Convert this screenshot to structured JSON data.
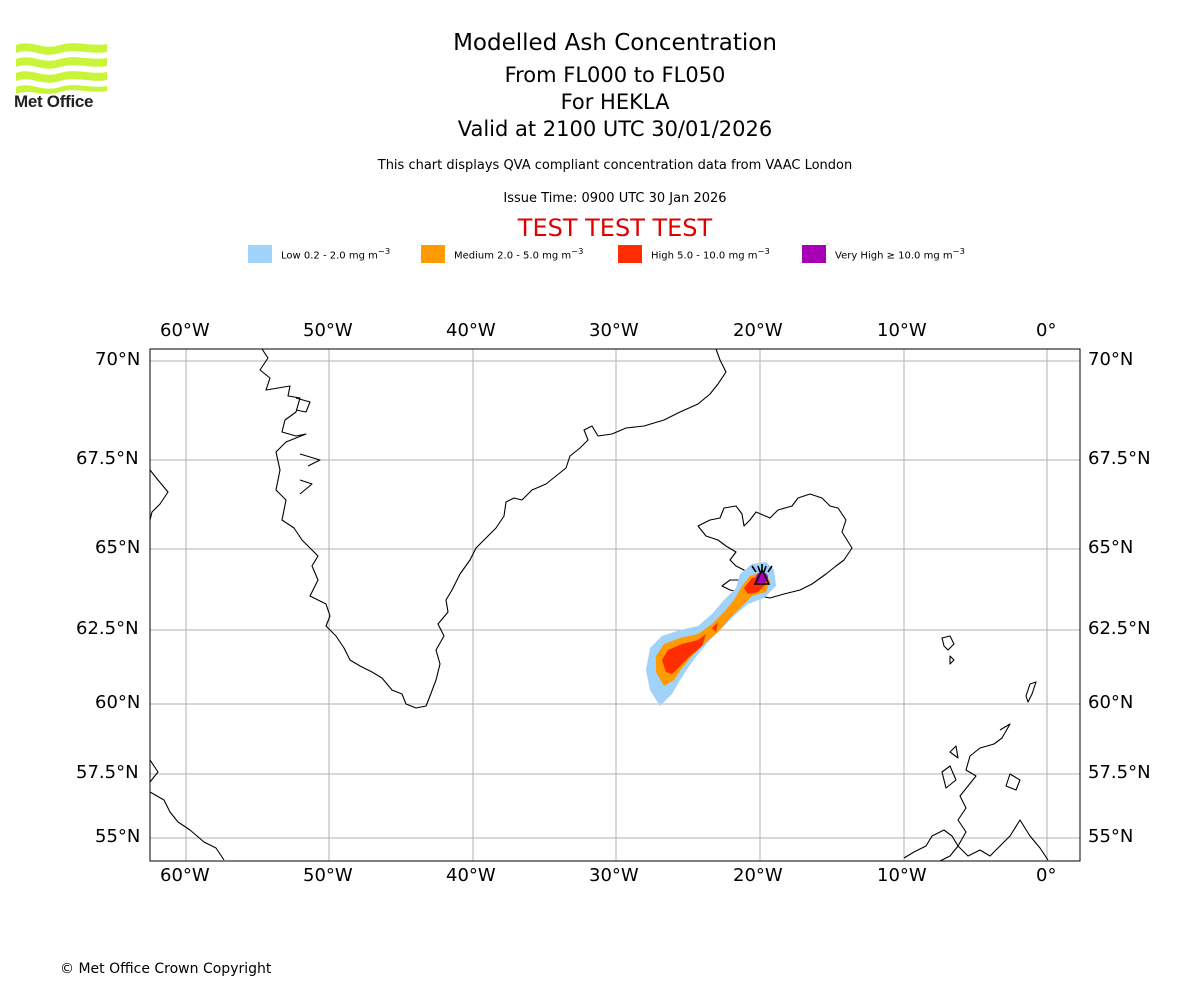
{
  "header": {
    "title": "Modelled Ash Concentration",
    "levels": "From FL000 to FL050",
    "volcano": "For HEKLA",
    "valid": "Valid at 2100 UTC 30/01/2026",
    "description": "This chart displays QVA compliant concentration data from VAAC London",
    "issue_time": "Issue Time: 0900 UTC 30 Jan 2026",
    "test_banner": "TEST TEST TEST"
  },
  "logo": {
    "text": "Met Office",
    "color": "#c8f53a",
    "icon": "met-office-wave-icon"
  },
  "legend": [
    {
      "label": "Low 0.2 - 2.0 mg m",
      "sup": "−3",
      "color": "#a0d2fa"
    },
    {
      "label": "Medium 2.0 - 5.0 mg m",
      "sup": "−3",
      "color": "#ff9a00"
    },
    {
      "label": "High 5.0 - 10.0 mg m",
      "sup": "−3",
      "color": "#ff2d00"
    },
    {
      "label": "Very High  ≥  10.0 mg m",
      "sup": "−3",
      "color": "#a800b4"
    }
  ],
  "map": {
    "lon_ticks": [
      "60°W",
      "50°W",
      "40°W",
      "30°W",
      "20°W",
      "10°W",
      "0°"
    ],
    "lat_ticks": [
      "70°N",
      "67.5°N",
      "65°N",
      "62.5°N",
      "60°N",
      "57.5°N",
      "55°N"
    ],
    "grid": true,
    "volcano_icon": "volcano-icon"
  },
  "footer": {
    "copyright": "© Met Office Crown Copyright"
  }
}
